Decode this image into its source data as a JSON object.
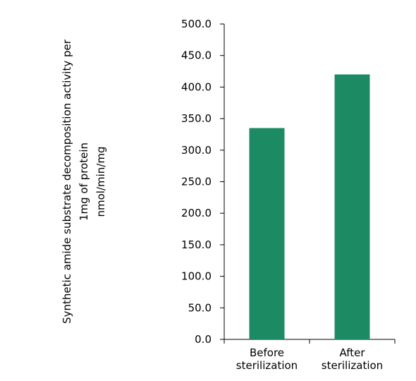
{
  "chart_data": {
    "type": "bar",
    "categories": [
      [
        "Before",
        "sterilization"
      ],
      [
        "After",
        "sterilization"
      ]
    ],
    "values": [
      335,
      420
    ],
    "ylabel": [
      "Synthetic amide substrate decomposition activity per",
      "1mg of protein",
      "nmol/min/mg"
    ],
    "ylim": [
      0,
      500
    ],
    "yticks": [
      "0.0",
      "50.0",
      "100.0",
      "150.0",
      "200.0",
      "250.0",
      "300.0",
      "350.0",
      "400.0",
      "450.0",
      "500.0"
    ],
    "grid": false,
    "bar_color": "#1c8b64",
    "axis_color": "#000000"
  }
}
